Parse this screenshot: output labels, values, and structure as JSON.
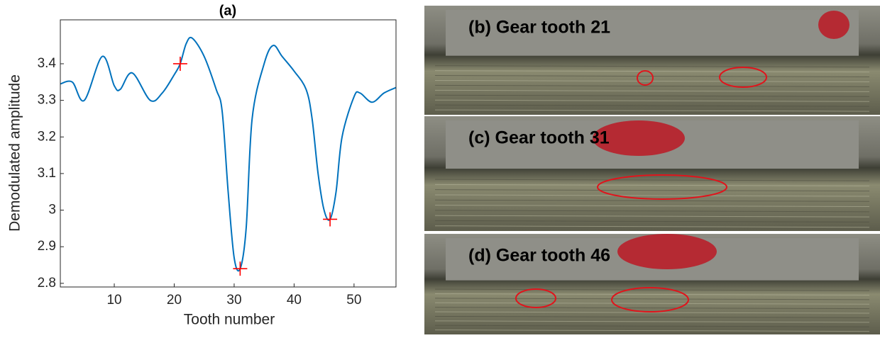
{
  "chart_data": {
    "type": "line",
    "title": "(a)",
    "xlabel": "Tooth number",
    "ylabel": "Demodulated amplitude",
    "xlim": [
      1,
      57
    ],
    "ylim": [
      2.79,
      3.52
    ],
    "xticks": [
      10,
      20,
      30,
      40,
      50
    ],
    "yticks": [
      2.8,
      2.9,
      3,
      3.1,
      3.2,
      3.3,
      3.4
    ],
    "series": [
      {
        "color": "#0072bd",
        "x": [
          1,
          3,
          5,
          8,
          10,
          11,
          13,
          16,
          18,
          20,
          21,
          22,
          23,
          25,
          27,
          28,
          29,
          30,
          31,
          32,
          33,
          35,
          36.5,
          38,
          40,
          42,
          43,
          44,
          45,
          46,
          47,
          48,
          50,
          51,
          53,
          55,
          57
        ],
        "values": [
          3.345,
          3.35,
          3.3,
          3.42,
          3.34,
          3.33,
          3.375,
          3.3,
          3.32,
          3.37,
          3.4,
          3.455,
          3.47,
          3.42,
          3.33,
          3.27,
          3.05,
          2.87,
          2.84,
          2.95,
          3.25,
          3.4,
          3.45,
          3.42,
          3.38,
          3.33,
          3.25,
          3.1,
          3.0,
          2.975,
          3.05,
          3.2,
          3.31,
          3.32,
          3.295,
          3.32,
          3.335
        ]
      },
      {
        "color": "#ff0000",
        "marker": "+",
        "x": [
          21,
          31,
          46
        ],
        "values": [
          3.4,
          2.84,
          2.975
        ]
      }
    ]
  },
  "panels": [
    {
      "label": "(b) Gear tooth 21"
    },
    {
      "label": "(c) Gear tooth 31"
    },
    {
      "label": "(d) Gear tooth 46"
    }
  ]
}
